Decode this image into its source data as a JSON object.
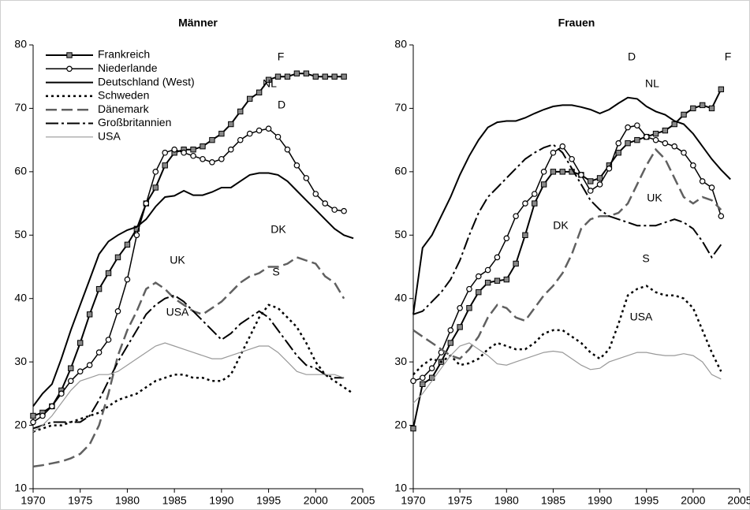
{
  "chart_data": [
    {
      "type": "line",
      "title": "Männer",
      "x": [
        1970,
        1971,
        1972,
        1973,
        1974,
        1975,
        1976,
        1977,
        1978,
        1979,
        1980,
        1981,
        1982,
        1983,
        1984,
        1985,
        1986,
        1987,
        1988,
        1989,
        1990,
        1991,
        1992,
        1993,
        1994,
        1995,
        1996,
        1997,
        1998,
        1999,
        2000,
        2001,
        2002,
        2003,
        2004
      ],
      "xlim": [
        1970,
        2005
      ],
      "ylim": [
        10,
        80
      ],
      "xticks": [
        1970,
        1975,
        1980,
        1985,
        1990,
        1995,
        2000,
        2005
      ],
      "yticks": [
        10,
        20,
        30,
        40,
        50,
        60,
        70,
        80
      ],
      "legend": "upper left",
      "series": [
        {
          "name": "Frankreich",
          "color": "#000000",
          "width": 2,
          "dash": "none",
          "marker": "square",
          "values": [
            21.5,
            22,
            23,
            25.5,
            29,
            33,
            37.5,
            41.5,
            44,
            46.5,
            48.5,
            51,
            55,
            57.5,
            61,
            63,
            63.5,
            63.5,
            64,
            65,
            66,
            67.5,
            69.5,
            71.5,
            72.5,
            74.5,
            75,
            75,
            75.5,
            75.5,
            75,
            75,
            75,
            75,
            null
          ]
        },
        {
          "name": "Niederlande",
          "color": "#000000",
          "width": 1.5,
          "dash": "none",
          "marker": "circle",
          "values": [
            20.5,
            21.5,
            23,
            25,
            27,
            28.5,
            29.5,
            31.5,
            33.5,
            38,
            43,
            50,
            55,
            60,
            63,
            63.5,
            63,
            62.5,
            62,
            61.5,
            62,
            63.5,
            65,
            66,
            66.5,
            66.8,
            65.5,
            63.5,
            61,
            59,
            56.5,
            55,
            54,
            53.8,
            null
          ]
        },
        {
          "name": "Deutschland (West)",
          "color": "#000000",
          "width": 2,
          "dash": "none",
          "marker": "none",
          "values": [
            23,
            25,
            26.5,
            30.5,
            35,
            39,
            43,
            47,
            49,
            50,
            50.8,
            51.3,
            52.5,
            54.5,
            56,
            56.2,
            57,
            56.3,
            56.3,
            56.8,
            57.5,
            57.5,
            58.5,
            59.5,
            59.8,
            59.8,
            59.5,
            58.5,
            57,
            55.5,
            54,
            52.5,
            51,
            50,
            49.5
          ]
        },
        {
          "name": "Schweden",
          "color": "#000000",
          "width": 2.5,
          "dash": "3,4",
          "marker": "none",
          "values": [
            19,
            19.5,
            20,
            20,
            20.5,
            21,
            21.5,
            22,
            23,
            24,
            24.5,
            25,
            26,
            27,
            27.5,
            28,
            28,
            27.5,
            27.5,
            27,
            27,
            28,
            31,
            34,
            37,
            39,
            38.5,
            37,
            35.5,
            33,
            30,
            28,
            27,
            26,
            25
          ]
        },
        {
          "name": "Dänemark",
          "color": "#606060",
          "width": 2.5,
          "dash": "14,6",
          "marker": "none",
          "values": [
            13.5,
            13.7,
            14,
            14.3,
            14.8,
            15.5,
            17,
            20,
            25,
            31,
            35,
            38,
            41.5,
            42.5,
            41.5,
            40,
            39,
            38,
            37.5,
            38.5,
            39.5,
            41,
            42.5,
            43.5,
            44,
            45,
            45,
            45.5,
            46.5,
            46,
            45.5,
            43.5,
            42.5,
            40,
            null
          ]
        },
        {
          "name": "Großbritannien",
          "color": "#000000",
          "width": 2,
          "dash": "16,4,3,4",
          "marker": "none",
          "values": [
            19.5,
            20,
            20.5,
            20.5,
            20.5,
            20.5,
            21.5,
            24,
            27,
            30,
            32.5,
            35,
            37.5,
            39,
            40,
            40.5,
            39.5,
            38,
            36.5,
            35,
            33.5,
            34.5,
            36,
            37,
            38,
            37,
            35,
            33,
            31,
            29.5,
            29,
            28,
            27.5,
            27.5,
            null
          ]
        },
        {
          "name": "USA",
          "color": "#999999",
          "width": 1.2,
          "dash": "none",
          "marker": "none",
          "values": [
            19,
            20,
            21.5,
            23.5,
            25.5,
            27,
            27.5,
            28,
            28,
            28.5,
            29.5,
            30.5,
            31.5,
            32.5,
            33,
            32.5,
            32,
            31.5,
            31,
            30.5,
            30.5,
            31,
            31.5,
            32,
            32.5,
            32.5,
            31.5,
            30,
            28.5,
            28,
            28,
            28,
            28,
            27.5,
            null
          ]
        }
      ],
      "annotations": [
        "F",
        "NL",
        "D",
        "DK",
        "UK",
        "S",
        "USA"
      ]
    },
    {
      "type": "line",
      "title": "Frauen",
      "x": [
        1970,
        1971,
        1972,
        1973,
        1974,
        1975,
        1976,
        1977,
        1978,
        1979,
        1980,
        1981,
        1982,
        1983,
        1984,
        1985,
        1986,
        1987,
        1988,
        1989,
        1990,
        1991,
        1992,
        1993,
        1994,
        1995,
        1996,
        1997,
        1998,
        1999,
        2000,
        2001,
        2002,
        2003,
        2004
      ],
      "xlim": [
        1970,
        2005
      ],
      "ylim": [
        10,
        80
      ],
      "xticks": [
        1970,
        1975,
        1980,
        1985,
        1990,
        1995,
        2000,
        2005
      ],
      "yticks": [
        10,
        20,
        30,
        40,
        50,
        60,
        70,
        80
      ],
      "series": [
        {
          "color": "#000000",
          "width": 2,
          "dash": "none",
          "marker": "square",
          "values": [
            19.5,
            26.5,
            27.5,
            30,
            33,
            35.5,
            38.5,
            41,
            42.5,
            42.8,
            43,
            45.5,
            50,
            55,
            58,
            60,
            60,
            60,
            59.5,
            58.5,
            59,
            61,
            63,
            64.5,
            65,
            65.5,
            66,
            66.5,
            67.5,
            69,
            70,
            70.5,
            70,
            73,
            null
          ]
        },
        {
          "color": "#000000",
          "width": 1.5,
          "dash": "none",
          "marker": "circle",
          "values": [
            27,
            27.5,
            29,
            31.5,
            35,
            38.5,
            41.5,
            43.5,
            44.5,
            46.5,
            49.5,
            53,
            55,
            56.5,
            60,
            63,
            64,
            62,
            59.5,
            57,
            58,
            60.5,
            64.5,
            67,
            67.3,
            65.5,
            65,
            64.5,
            64,
            63,
            61,
            58.5,
            57.5,
            53,
            null
          ]
        },
        {
          "color": "#000000",
          "width": 2,
          "dash": "none",
          "marker": "none",
          "values": [
            37.5,
            48,
            50,
            53,
            56,
            59.5,
            62.5,
            65,
            67,
            67.8,
            68,
            68,
            68.5,
            69.2,
            69.8,
            70.3,
            70.5,
            70.5,
            70.2,
            69.8,
            69.2,
            69.8,
            70.8,
            71.7,
            71.5,
            70.3,
            69.5,
            69,
            68,
            67.5,
            66,
            64,
            62,
            60.3,
            58.8
          ]
        },
        {
          "color": "#000000",
          "width": 2.5,
          "dash": "3,4",
          "marker": "none",
          "values": [
            28,
            29.5,
            30.5,
            30,
            31,
            29.5,
            29.8,
            30.5,
            32,
            33,
            32.5,
            32,
            32,
            33,
            34.5,
            35,
            35,
            34,
            33,
            31.5,
            30.5,
            32,
            36,
            40.5,
            41.5,
            42,
            41,
            40.5,
            40.5,
            40,
            38.5,
            35,
            31.5,
            28.5,
            null
          ]
        },
        {
          "color": "#606060",
          "width": 2.5,
          "dash": "14,6",
          "marker": "none",
          "values": [
            35,
            34,
            33,
            32,
            31,
            30.5,
            32,
            34,
            37,
            39,
            38.5,
            37,
            36.5,
            38.5,
            40.5,
            42,
            44,
            47,
            51,
            52.5,
            53,
            53,
            53.5,
            55,
            58,
            61,
            63.5,
            62,
            59,
            56,
            55,
            56,
            55.5,
            54,
            null
          ]
        },
        {
          "color": "#000000",
          "width": 2,
          "dash": "16,4,3,4",
          "marker": "none",
          "values": [
            37.5,
            38,
            39.5,
            41,
            43,
            46,
            50,
            53.5,
            56,
            57.5,
            59,
            60.5,
            62,
            63,
            63.8,
            64.3,
            63,
            60.5,
            58,
            55.5,
            54,
            53,
            52.5,
            52,
            51.5,
            51.5,
            51.5,
            52,
            52.5,
            52,
            51,
            49,
            46.5,
            48.5,
            null
          ]
        },
        {
          "color": "#999999",
          "width": 1.2,
          "dash": "none",
          "marker": "none",
          "values": [
            23.5,
            25,
            27,
            29,
            31,
            32.5,
            33,
            32,
            31,
            29.7,
            29.5,
            30,
            30.5,
            31,
            31.5,
            31.7,
            31.5,
            30.5,
            29.5,
            28.8,
            29,
            30,
            30.5,
            31,
            31.5,
            31.5,
            31.2,
            31,
            31,
            31.3,
            31,
            30,
            28,
            27.3,
            null
          ]
        }
      ],
      "annotations": [
        "D",
        "F",
        "NL",
        "UK",
        "DK",
        "S",
        "USA"
      ]
    }
  ]
}
